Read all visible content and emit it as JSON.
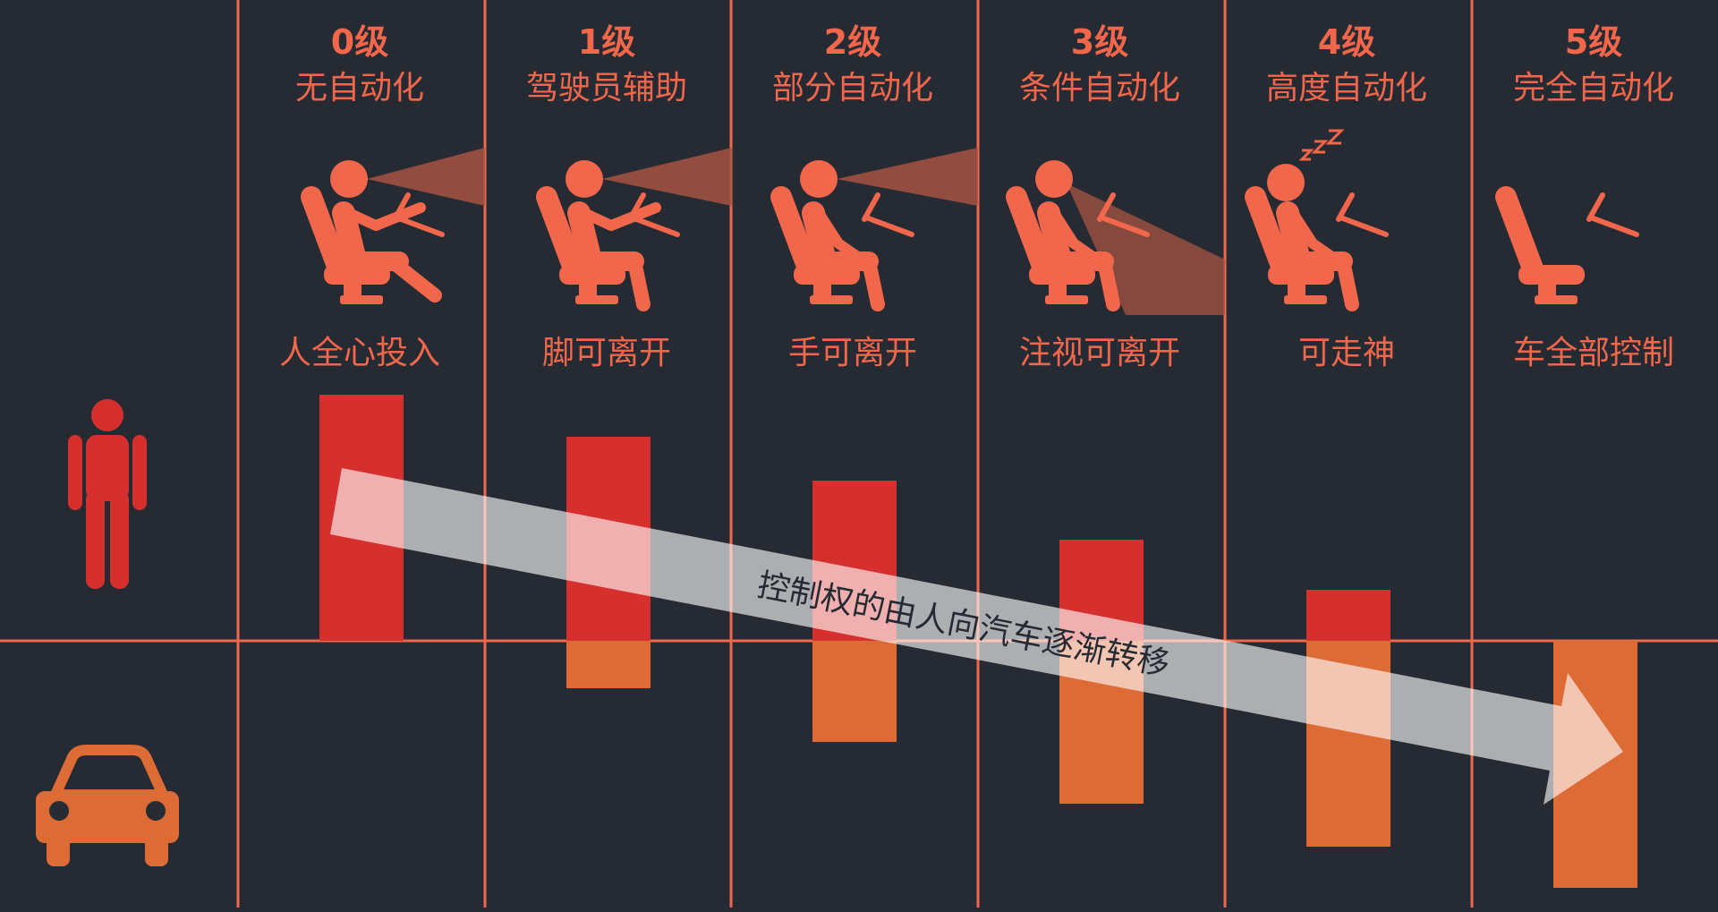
{
  "colors": {
    "background": "#262a33",
    "accent": "#f0674b",
    "human_bar": "#d5302e",
    "vehicle_bar": "#dc6b35",
    "cone": "#a75443",
    "arrow": "#ffffff"
  },
  "levels": [
    {
      "level": "0级",
      "name": "无自动化",
      "caption": "人全心投入",
      "human": 275,
      "vehicle": 0,
      "state": "hands-on"
    },
    {
      "level": "1级",
      "name": "驾驶员辅助",
      "caption": "脚可离开",
      "human": 228,
      "vehicle": 53,
      "state": "feet-off"
    },
    {
      "level": "2级",
      "name": "部分自动化",
      "caption": "手可离开",
      "human": 179,
      "vehicle": 113,
      "state": "hands-off"
    },
    {
      "level": "3级",
      "name": "条件自动化",
      "caption": "注视可离开",
      "human": 113,
      "vehicle": 182,
      "state": "eyes-off"
    },
    {
      "level": "4级",
      "name": "高度自动化",
      "caption": "可走神",
      "human": 57,
      "vehicle": 230,
      "state": "sleeping"
    },
    {
      "level": "5级",
      "name": "完全自动化",
      "caption": "车全部控制",
      "human": 0,
      "vehicle": 276,
      "state": "empty-seat"
    }
  ],
  "row_icons": {
    "human": "person-icon",
    "vehicle": "car-icon"
  },
  "arrow_label": "控制权的由人向汽车逐渐转移"
}
